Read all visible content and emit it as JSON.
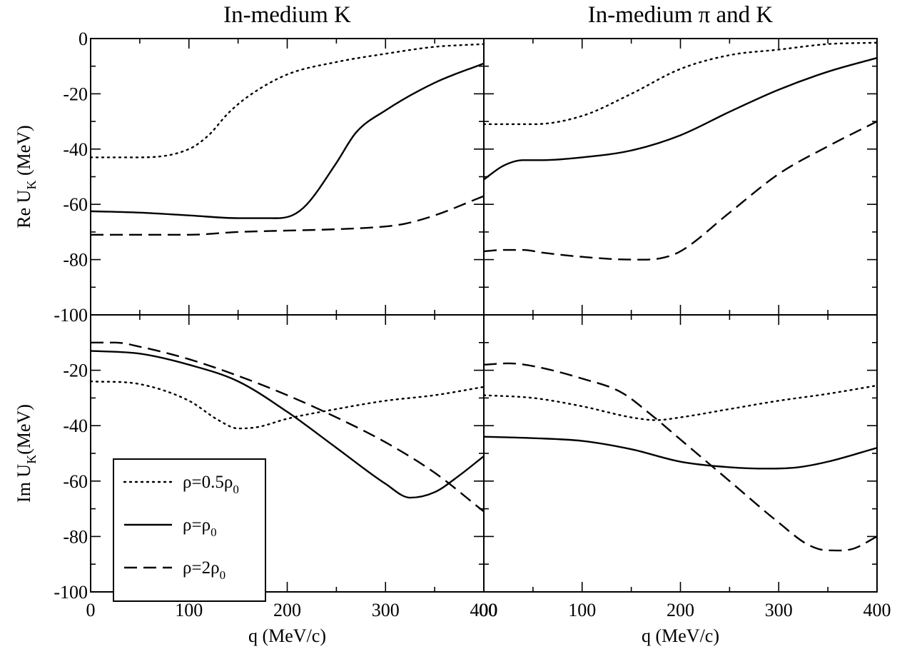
{
  "chart_data": [
    {
      "type": "line",
      "panel": "top-left",
      "title": "In-medium K",
      "ylabel_main": "Re U",
      "ylabel_sub": "K",
      "ylabel_unit": " (MeV)",
      "xlabel": "",
      "xlim": [
        0,
        400
      ],
      "ylim": [
        -100,
        0
      ],
      "yticks": [
        "0",
        "-20",
        "-40",
        "-60",
        "-80",
        "-100"
      ],
      "xticks": [],
      "series": [
        {
          "style": "dotted",
          "x": [
            0,
            50,
            100,
            120,
            140,
            160,
            200,
            250,
            300,
            350,
            400
          ],
          "y": [
            -43,
            -43,
            -40,
            -35,
            -27,
            -21,
            -13,
            -8.5,
            -5.5,
            -3,
            -2
          ]
        },
        {
          "style": "solid",
          "x": [
            0,
            50,
            100,
            150,
            180,
            205,
            220,
            250,
            270,
            300,
            350,
            400
          ],
          "y": [
            -62.5,
            -63,
            -64,
            -65,
            -65,
            -64,
            -60,
            -45,
            -34,
            -26,
            -16,
            -9
          ]
        },
        {
          "style": "dashed",
          "x": [
            0,
            50,
            100,
            150,
            200,
            250,
            300,
            320,
            350,
            400
          ],
          "y": [
            -71,
            -71,
            -71,
            -70,
            -69.5,
            -69,
            -68,
            -67,
            -64,
            -57
          ]
        }
      ]
    },
    {
      "type": "line",
      "panel": "top-right",
      "title": "In-medium  π and K",
      "ylabel_main": "",
      "xlabel": "",
      "xlim": [
        0,
        400
      ],
      "ylim": [
        -100,
        0
      ],
      "yticks": [],
      "xticks": [],
      "series": [
        {
          "style": "dotted",
          "x": [
            0,
            50,
            100,
            150,
            200,
            250,
            300,
            350,
            400
          ],
          "y": [
            -31,
            -31,
            -28,
            -20,
            -11,
            -6,
            -4,
            -2,
            -1.5
          ]
        },
        {
          "style": "solid",
          "x": [
            0,
            20,
            40,
            60,
            100,
            150,
            200,
            250,
            300,
            350,
            400
          ],
          "y": [
            -51,
            -46,
            -44,
            -44,
            -43,
            -40.5,
            -35,
            -26.5,
            -18.5,
            -12,
            -7
          ]
        },
        {
          "style": "dashed",
          "x": [
            0,
            20,
            40,
            60,
            100,
            150,
            180,
            200,
            250,
            300,
            350,
            400
          ],
          "y": [
            -77,
            -76.5,
            -76.5,
            -77.5,
            -79,
            -80,
            -79.5,
            -77,
            -63,
            -49,
            -39,
            -30
          ]
        }
      ]
    },
    {
      "type": "line",
      "panel": "bottom-left",
      "title": "",
      "ylabel_main": "Im U",
      "ylabel_sub": "K",
      "ylabel_unit": "(MeV)",
      "xlabel": "q (MeV/c)",
      "xlim": [
        0,
        400
      ],
      "ylim": [
        -100,
        0
      ],
      "yticks": [
        "-20",
        "-40",
        "-60",
        "-80",
        "-100"
      ],
      "xticks": [
        "0",
        "100",
        "200",
        "300",
        "400"
      ],
      "series": [
        {
          "style": "dotted",
          "x": [
            0,
            50,
            100,
            130,
            150,
            170,
            200,
            250,
            300,
            350,
            400
          ],
          "y": [
            -24,
            -25,
            -31,
            -38,
            -41,
            -40.5,
            -37.5,
            -34,
            -31,
            -29,
            -26
          ]
        },
        {
          "style": "solid",
          "x": [
            0,
            50,
            100,
            150,
            200,
            250,
            300,
            325,
            350,
            375,
            400
          ],
          "y": [
            -13,
            -14,
            -18,
            -24,
            -35,
            -48,
            -61,
            -66,
            -64,
            -58,
            -51
          ]
        },
        {
          "style": "dashed",
          "x": [
            0,
            25,
            50,
            100,
            150,
            200,
            250,
            300,
            350,
            400
          ],
          "y": [
            -10,
            -10,
            -11.5,
            -16,
            -22,
            -29,
            -37,
            -46,
            -57,
            -71
          ]
        }
      ]
    },
    {
      "type": "line",
      "panel": "bottom-right",
      "title": "",
      "ylabel_main": "",
      "xlabel": "q (MeV/c)",
      "xlim": [
        0,
        400
      ],
      "ylim": [
        -100,
        0
      ],
      "yticks": [],
      "xticks": [
        "00",
        "100",
        "200",
        "300",
        "400"
      ],
      "series": [
        {
          "style": "dotted",
          "x": [
            0,
            50,
            100,
            150,
            175,
            200,
            250,
            300,
            350,
            400
          ],
          "y": [
            -29,
            -30,
            -33,
            -37,
            -38,
            -37,
            -34,
            -31,
            -28.5,
            -25.5
          ]
        },
        {
          "style": "solid",
          "x": [
            0,
            50,
            100,
            150,
            200,
            250,
            290,
            320,
            350,
            400
          ],
          "y": [
            -44,
            -44.5,
            -45.5,
            -48.5,
            -53,
            -55,
            -55.5,
            -55,
            -53,
            -48
          ]
        },
        {
          "style": "dashed",
          "x": [
            0,
            25,
            50,
            100,
            140,
            170,
            200,
            250,
            300,
            330,
            350,
            375,
            400
          ],
          "y": [
            -18,
            -17.5,
            -18.5,
            -23,
            -28,
            -36,
            -45,
            -60,
            -75,
            -83,
            -85,
            -84.5,
            -80
          ]
        }
      ]
    }
  ],
  "legend": {
    "placement": "lower-left of bottom-left panel",
    "entries": [
      {
        "style": "dotted",
        "pre": "ρ=0.5ρ",
        "sub": "0"
      },
      {
        "style": "solid",
        "pre": "ρ=ρ",
        "sub": "0"
      },
      {
        "style": "dashed",
        "pre": "ρ=2ρ",
        "sub": "0"
      }
    ]
  }
}
